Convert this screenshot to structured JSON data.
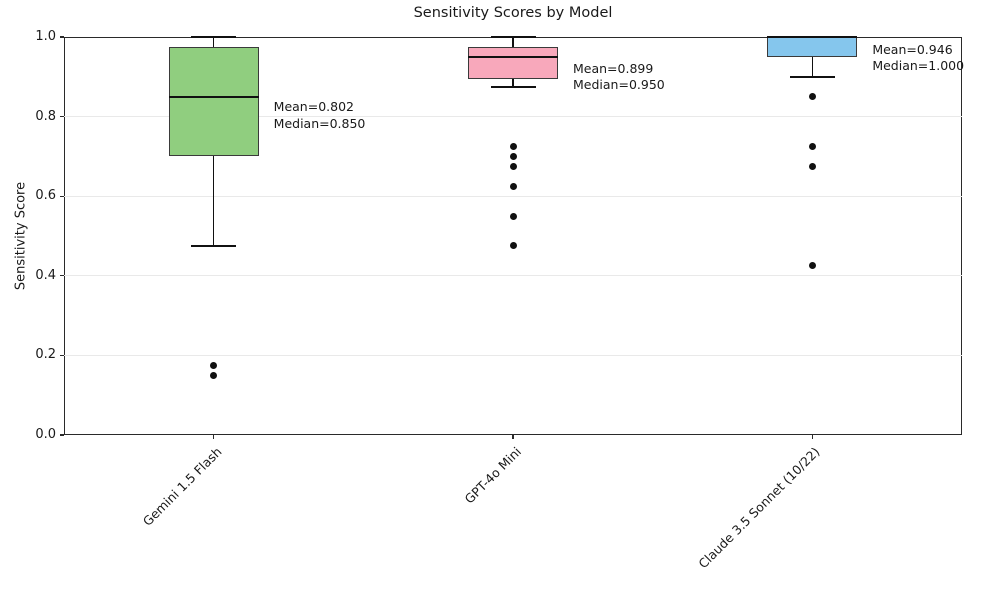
{
  "chart_data": {
    "type": "box",
    "title": "Sensitivity Scores by Model",
    "xlabel": "",
    "ylabel": "Sensitivity Score",
    "ylim": [
      0.0,
      1.0
    ],
    "yticks": [
      0.0,
      0.2,
      0.4,
      0.6,
      0.8,
      1.0
    ],
    "grid": "horizontal-light",
    "legend": "none",
    "categories": [
      "Gemini 1.5 Flash",
      "GPT-4o Mini",
      "Claude 3.5 Sonnet (10/22)"
    ],
    "series": [
      {
        "label": "Gemini 1.5 Flash",
        "box_color": "#90ce7f",
        "whisker_low": 0.475,
        "q1": 0.7,
        "median": 0.85,
        "q3": 0.975,
        "whisker_high": 1.0,
        "outliers": [
          0.175,
          0.15
        ],
        "mean": 0.802,
        "annotation_lines": [
          "Mean=0.802",
          "Median=0.850"
        ]
      },
      {
        "label": "GPT-4o Mini",
        "box_color": "#f8a8bb",
        "whisker_low": 0.875,
        "q1": 0.895,
        "median": 0.95,
        "q3": 0.975,
        "whisker_high": 1.0,
        "outliers": [
          0.725,
          0.7,
          0.675,
          0.625,
          0.55,
          0.475
        ],
        "mean": 0.899,
        "annotation_lines": [
          "Mean=0.899",
          "Median=0.950"
        ]
      },
      {
        "label": "Claude 3.5 Sonnet (10/22)",
        "box_color": "#85c6ed",
        "whisker_low": 0.9,
        "q1": 0.95,
        "median": 1.0,
        "q3": 1.0,
        "whisker_high": 1.0,
        "outliers": [
          0.85,
          0.725,
          0.675,
          0.425
        ],
        "mean": 0.946,
        "annotation_lines": [
          "Mean=0.946",
          "Median=1.000"
        ]
      }
    ],
    "colors": {
      "box_border": "#3a3a3a",
      "median_line": "#111111",
      "whisker": "#111111",
      "outlier": "#111111",
      "grid_line": "#e9e9e9",
      "spine": "#2a2a2a",
      "text": "#1a1a1a",
      "background": "#ffffff"
    }
  }
}
